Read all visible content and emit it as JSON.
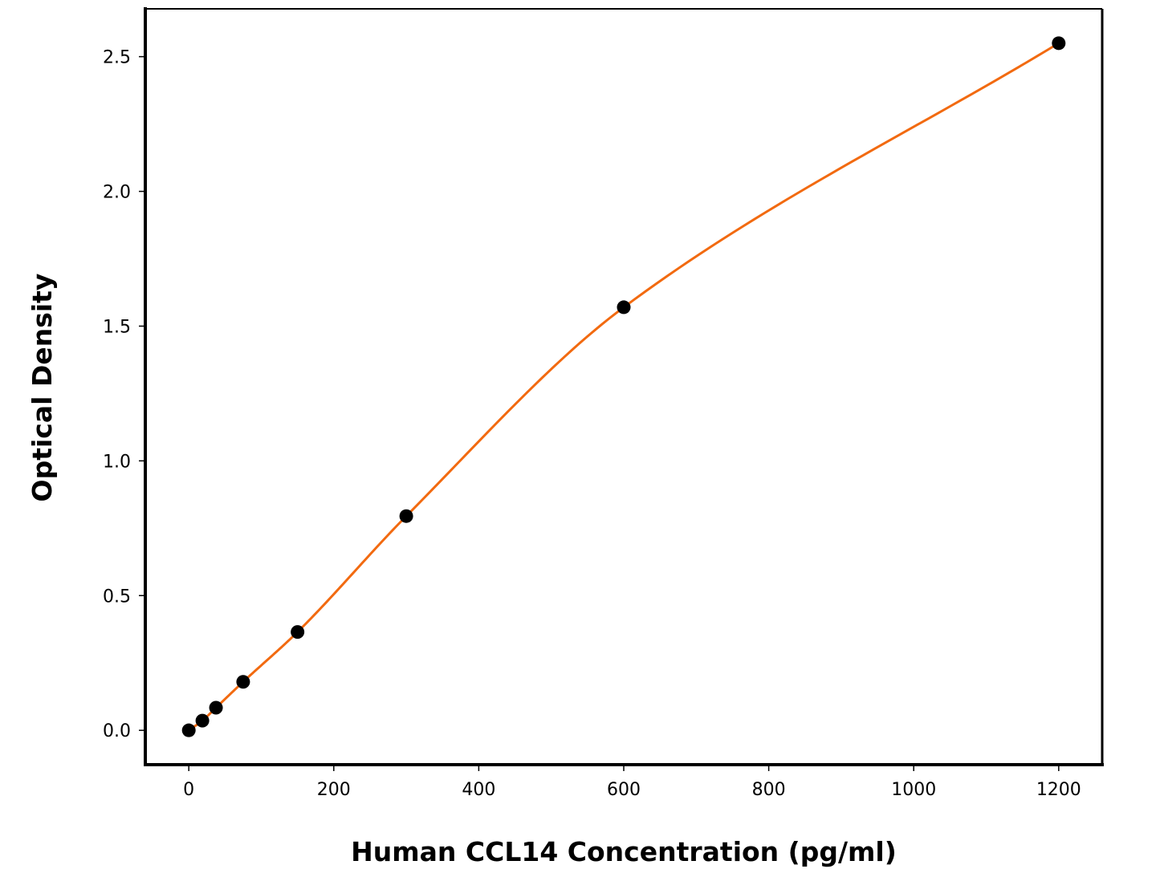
{
  "chart_data": {
    "type": "scatter",
    "title": "",
    "xlabel": "Human CCL14 Concentration (pg/ml)",
    "ylabel": "Optical Density",
    "xlim": [
      -60,
      1260
    ],
    "ylim": [
      -0.1275,
      2.6775
    ],
    "xticks": [
      0,
      200,
      400,
      600,
      800,
      1000,
      1200
    ],
    "xtick_labels": [
      "0",
      "200",
      "400",
      "600",
      "800",
      "1000",
      "1200"
    ],
    "yticks": [
      0.0,
      0.5,
      1.0,
      1.5,
      2.0,
      2.5
    ],
    "ytick_labels": [
      "0.0",
      "0.5",
      "1.0",
      "1.5",
      "2.0",
      "2.5"
    ],
    "grid": false,
    "series": [
      {
        "kind": "points",
        "color": "#000000",
        "x": [
          0,
          18.75,
          37.5,
          75,
          150,
          300,
          600,
          1200
        ],
        "y": [
          0.0,
          0.036,
          0.084,
          0.18,
          0.365,
          0.795,
          1.57,
          2.55
        ]
      },
      {
        "kind": "fitted-curve",
        "color": "#f26a10"
      }
    ]
  }
}
